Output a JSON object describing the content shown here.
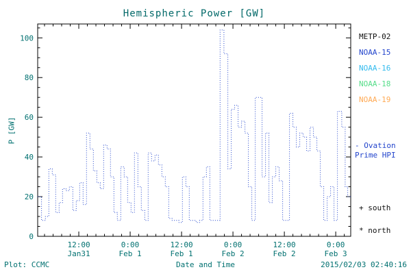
{
  "title": "Hemispheric Power [GW]",
  "footer": {
    "left": "Plot: CCMC",
    "right": "2015/02/03 02:40:16"
  },
  "legend": [
    {
      "label": "METP-02",
      "color": "#111111"
    },
    {
      "label": "NOAA-15",
      "color": "#2244cc"
    },
    {
      "label": "NOAA-16",
      "color": "#33bbee"
    },
    {
      "label": "NOAA-18",
      "color": "#55dd88"
    },
    {
      "label": "NOAA-19",
      "color": "#ffaa55"
    }
  ],
  "annotations": {
    "ovation": "- Ovation\nPrime HPI",
    "south": "+ south",
    "north": "* north"
  },
  "colors": {
    "axis": "#000000",
    "tick_text": "#007070",
    "title_text": "#006868",
    "line": "#2244cc"
  },
  "chart_data": {
    "type": "line",
    "style": "dotted-step",
    "title": "Hemispheric Power [GW]",
    "xlabel": "Date and Time",
    "ylabel": "P [GW]",
    "ylim": [
      0,
      107
    ],
    "yticks": [
      0,
      20,
      40,
      60,
      80,
      100
    ],
    "xlim": [
      2.4,
      75.5
    ],
    "xticks": [
      {
        "h": 12,
        "time": "12:00",
        "date": "Jan31"
      },
      {
        "h": 24,
        "time": "0:00",
        "date": "Feb 1"
      },
      {
        "h": 36,
        "time": "12:00",
        "date": "Feb 1"
      },
      {
        "h": 48,
        "time": "0:00",
        "date": "Feb 2"
      },
      {
        "h": 60,
        "time": "12:00",
        "date": "Feb 2"
      },
      {
        "h": 72,
        "time": "0:00",
        "date": "Feb 3"
      }
    ],
    "series_name": "Ovation Prime HPI",
    "points": [
      [
        2.4,
        20
      ],
      [
        3.3,
        8
      ],
      [
        4.2,
        10
      ],
      [
        5.0,
        34
      ],
      [
        5.8,
        31
      ],
      [
        6.6,
        12
      ],
      [
        7.4,
        17
      ],
      [
        8.2,
        24
      ],
      [
        9.0,
        23
      ],
      [
        9.8,
        25
      ],
      [
        10.6,
        13
      ],
      [
        11.4,
        18
      ],
      [
        12.2,
        27
      ],
      [
        13.0,
        16
      ],
      [
        13.8,
        52
      ],
      [
        14.6,
        44
      ],
      [
        15.4,
        33
      ],
      [
        16.2,
        27
      ],
      [
        17.0,
        24
      ],
      [
        17.8,
        46
      ],
      [
        18.6,
        44
      ],
      [
        19.4,
        30
      ],
      [
        20.2,
        12
      ],
      [
        21.0,
        8
      ],
      [
        21.8,
        35
      ],
      [
        22.6,
        30
      ],
      [
        23.4,
        17
      ],
      [
        24.2,
        12
      ],
      [
        25.0,
        42
      ],
      [
        25.8,
        25
      ],
      [
        26.6,
        13
      ],
      [
        27.4,
        8
      ],
      [
        28.2,
        42
      ],
      [
        29.0,
        38
      ],
      [
        29.8,
        41
      ],
      [
        30.6,
        36
      ],
      [
        31.4,
        30
      ],
      [
        32.2,
        25
      ],
      [
        33.0,
        9
      ],
      [
        33.8,
        8
      ],
      [
        34.6,
        8
      ],
      [
        35.4,
        7
      ],
      [
        36.2,
        30
      ],
      [
        37.0,
        25
      ],
      [
        37.8,
        8
      ],
      [
        38.6,
        8
      ],
      [
        39.4,
        7
      ],
      [
        40.2,
        8
      ],
      [
        41.0,
        30
      ],
      [
        41.8,
        35
      ],
      [
        42.6,
        8
      ],
      [
        43.4,
        8
      ],
      [
        44.2,
        8
      ],
      [
        45.0,
        104
      ],
      [
        45.9,
        92
      ],
      [
        46.8,
        34
      ],
      [
        47.6,
        64
      ],
      [
        48.4,
        66
      ],
      [
        49.2,
        55
      ],
      [
        50.0,
        58
      ],
      [
        50.8,
        52
      ],
      [
        51.6,
        25
      ],
      [
        52.4,
        8
      ],
      [
        53.2,
        70
      ],
      [
        54.0,
        70
      ],
      [
        54.8,
        30
      ],
      [
        55.6,
        52
      ],
      [
        56.4,
        17
      ],
      [
        57.2,
        30
      ],
      [
        58.0,
        35
      ],
      [
        58.8,
        28
      ],
      [
        59.6,
        8
      ],
      [
        60.4,
        8
      ],
      [
        61.2,
        62
      ],
      [
        62.0,
        55
      ],
      [
        62.8,
        45
      ],
      [
        63.6,
        52
      ],
      [
        64.4,
        50
      ],
      [
        65.2,
        43
      ],
      [
        66.0,
        55
      ],
      [
        66.8,
        50
      ],
      [
        67.6,
        43
      ],
      [
        68.4,
        25
      ],
      [
        69.2,
        8
      ],
      [
        70.0,
        20
      ],
      [
        70.8,
        25
      ],
      [
        71.6,
        8
      ],
      [
        72.4,
        63
      ],
      [
        73.4,
        55
      ],
      [
        74.2,
        25
      ],
      [
        74.8,
        20
      ]
    ]
  }
}
